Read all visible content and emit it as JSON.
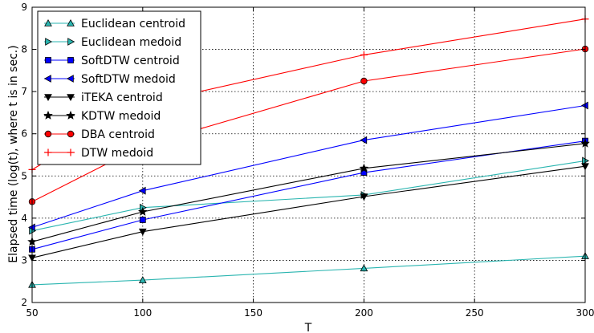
{
  "chart_data": {
    "type": "line",
    "title": "",
    "xlabel": "T",
    "ylabel": "Elapsed time (log(t), where t is in sec.)",
    "xlim": [
      50,
      300
    ],
    "ylim": [
      2,
      9
    ],
    "xticks": [
      "50",
      "100",
      "150",
      "200",
      "250",
      "300"
    ],
    "yticks": [
      "2",
      "3",
      "4",
      "5",
      "6",
      "7",
      "8",
      "9"
    ],
    "grid": true,
    "legend_position": "top-left",
    "x": [
      50,
      100,
      200,
      300
    ],
    "series": [
      {
        "name": "Euclidean centroid",
        "values": [
          2.42,
          2.53,
          2.81,
          3.1
        ],
        "color": "#2ab5b0",
        "marker": "triangle-up"
      },
      {
        "name": "Euclidean medoid",
        "values": [
          3.7,
          4.25,
          4.55,
          5.36
        ],
        "color": "#2ab5b0",
        "marker": "triangle-right"
      },
      {
        "name": "SoftDTW centroid",
        "values": [
          3.26,
          3.96,
          5.08,
          5.83
        ],
        "color": "#0000ff",
        "marker": "square"
      },
      {
        "name": "SoftDTW medoid",
        "values": [
          3.78,
          4.65,
          5.85,
          6.67
        ],
        "color": "#0000ff",
        "marker": "triangle-left"
      },
      {
        "name": "iTEKA centroid",
        "values": [
          3.06,
          3.68,
          4.51,
          5.23
        ],
        "color": "#000000",
        "marker": "triangle-down"
      },
      {
        "name": "KDTW medoid",
        "values": [
          3.44,
          4.15,
          5.18,
          5.77
        ],
        "color": "#000000",
        "marker": "star"
      },
      {
        "name": "DBA centroid",
        "values": [
          4.39,
          5.72,
          7.25,
          8.01
        ],
        "color": "#ff0000",
        "marker": "circle"
      },
      {
        "name": "DTW medoid",
        "values": [
          5.15,
          6.7,
          7.87,
          8.72
        ],
        "color": "#ff0000",
        "marker": "plus"
      }
    ]
  }
}
